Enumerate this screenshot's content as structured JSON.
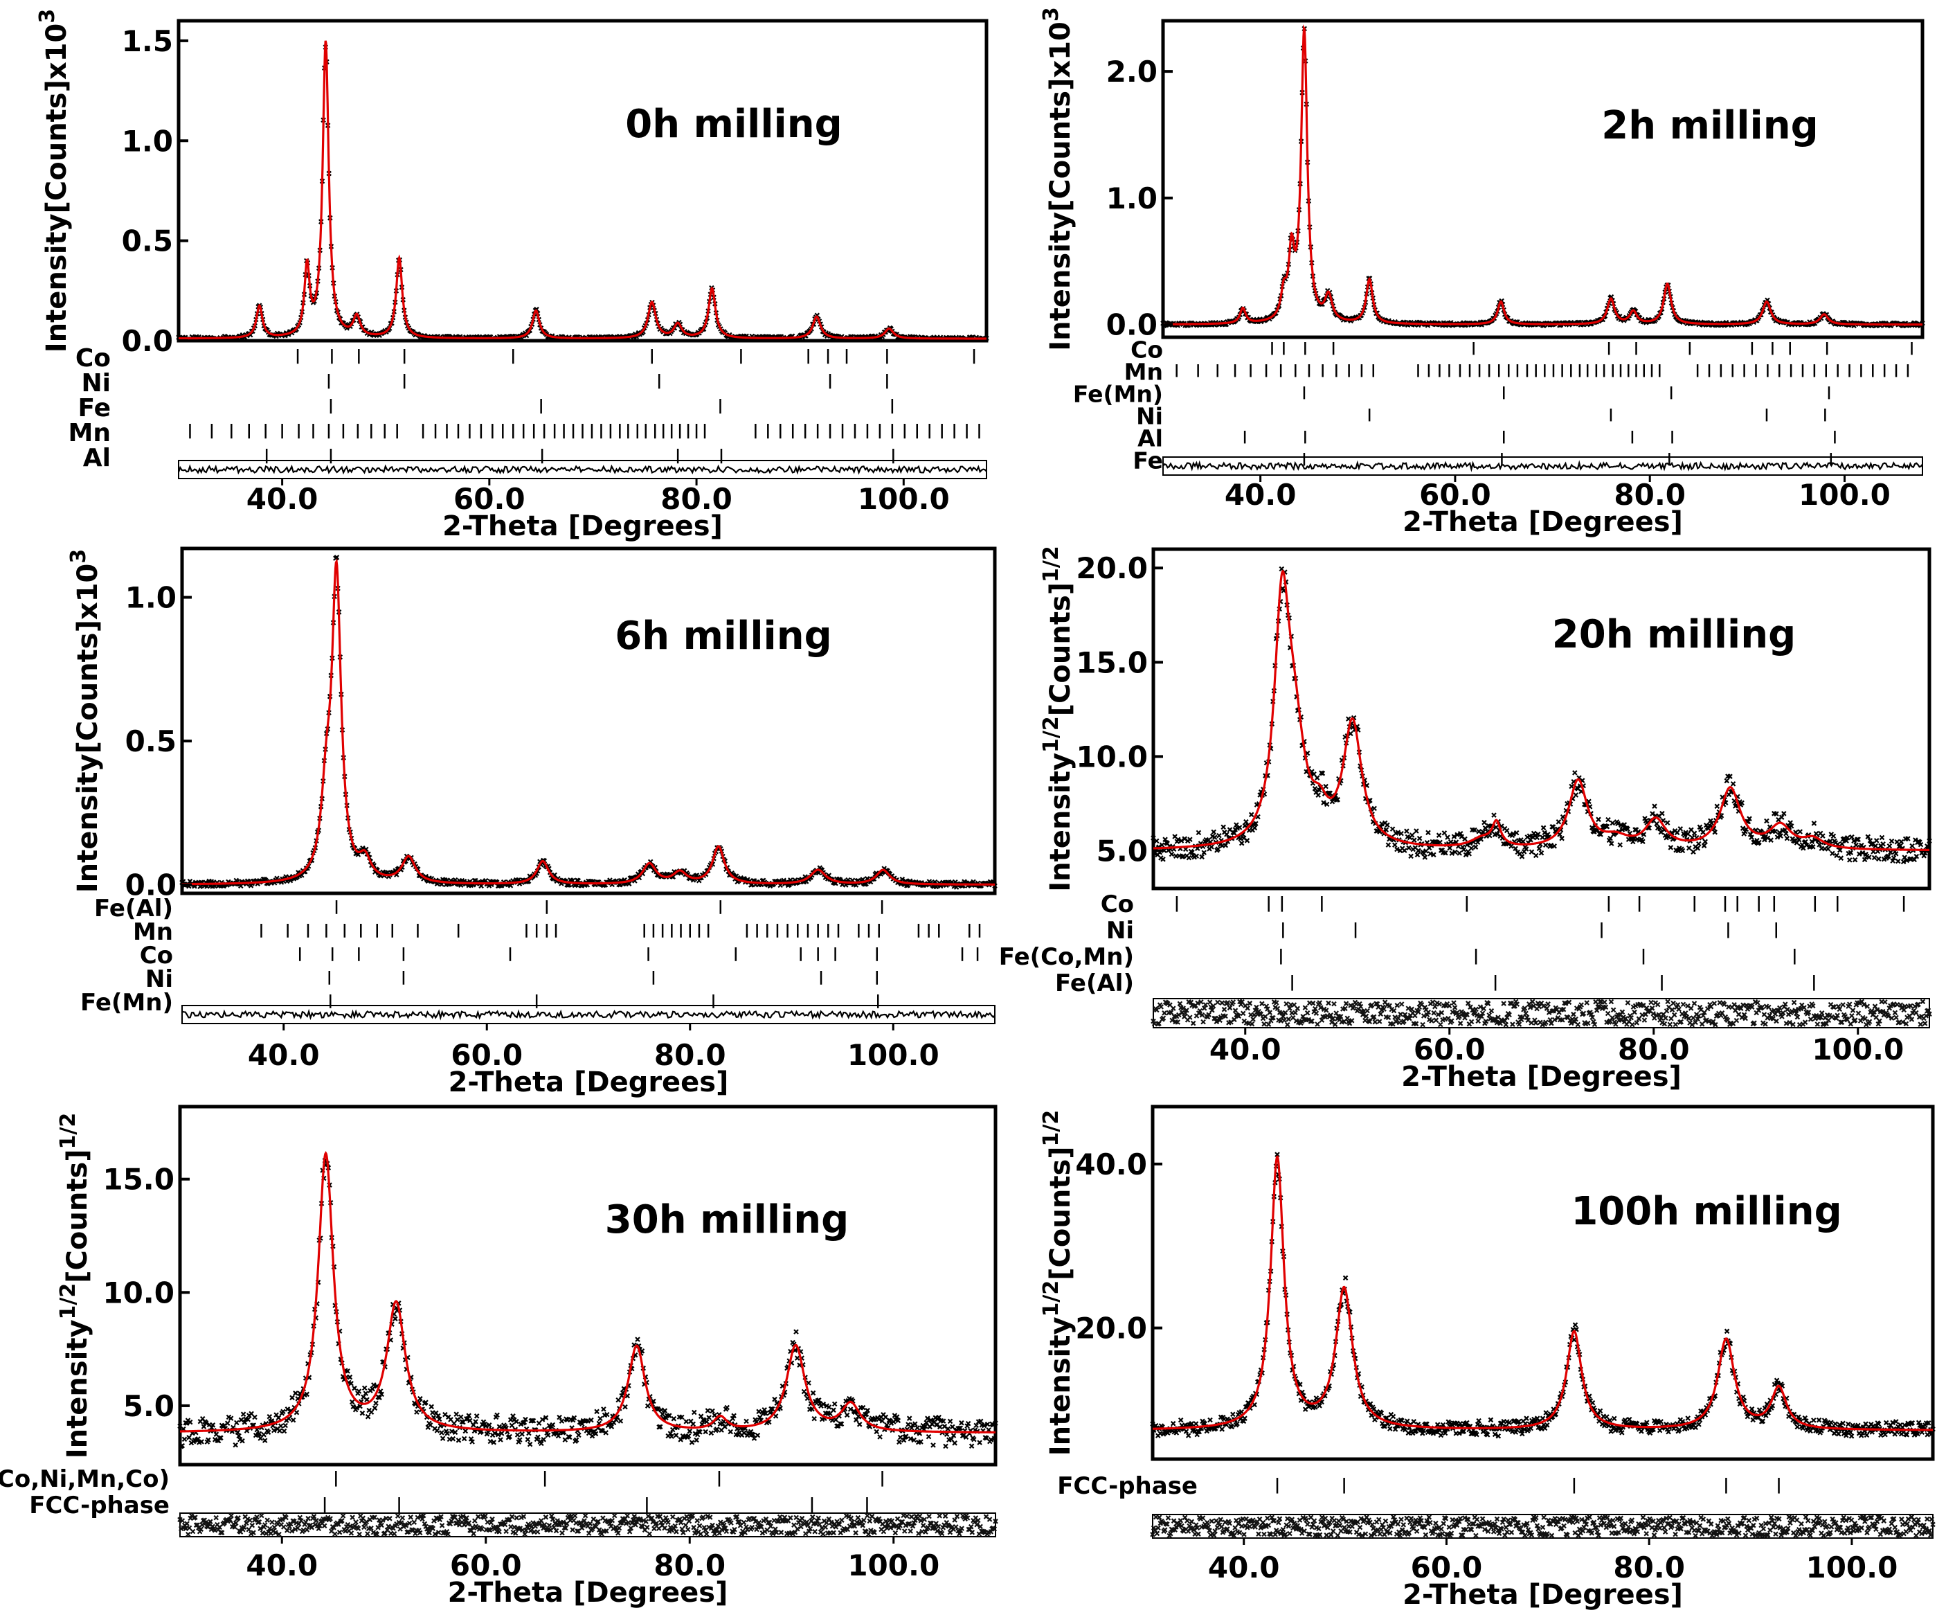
{
  "figure": {
    "x_axis_label": "2-Theta [Degrees]"
  },
  "colors": {
    "observed": "#000000",
    "calculated": "#e00000",
    "frame": "#000000"
  },
  "chart_data": [
    {
      "type": "line",
      "title": "0h milling",
      "ylabel": "Intensity[Counts]x10",
      "ylabel_super": "3",
      "xlabel": "2-Theta [Degrees]",
      "xlim": [
        30,
        108
      ],
      "ylim": [
        0,
        1.6
      ],
      "yticks": [
        0.0,
        0.5,
        1.0,
        1.5
      ],
      "ytick_labels": [
        "0.0",
        "0.5",
        "1.0",
        "1.5"
      ],
      "xticks": [
        40,
        60,
        80,
        100
      ],
      "xtick_labels": [
        "40.0",
        "60.0",
        "80.0",
        "100.0"
      ],
      "background": 0.01,
      "noise": 0.008,
      "peaks": [
        {
          "x": 37.8,
          "h": 0.16,
          "w": 0.35
        },
        {
          "x": 42.4,
          "h": 0.34,
          "w": 0.3
        },
        {
          "x": 44.2,
          "h": 1.48,
          "w": 0.35
        },
        {
          "x": 47.2,
          "h": 0.1,
          "w": 0.4
        },
        {
          "x": 51.3,
          "h": 0.4,
          "w": 0.35
        },
        {
          "x": 64.5,
          "h": 0.14,
          "w": 0.4
        },
        {
          "x": 75.7,
          "h": 0.18,
          "w": 0.45
        },
        {
          "x": 78.2,
          "h": 0.07,
          "w": 0.45
        },
        {
          "x": 81.5,
          "h": 0.25,
          "w": 0.4
        },
        {
          "x": 91.6,
          "h": 0.11,
          "w": 0.45
        },
        {
          "x": 98.6,
          "h": 0.05,
          "w": 0.5
        }
      ],
      "phases": [
        {
          "name": "Co",
          "positions": [
            41.5,
            44.8,
            47.4,
            51.8,
            62.3,
            75.7,
            84.3,
            90.8,
            92.7,
            94.5,
            98.4,
            106.8
          ]
        },
        {
          "name": "Ni",
          "positions": [
            44.5,
            51.8,
            76.4,
            92.9,
            98.4
          ]
        },
        {
          "name": "Fe",
          "positions": [
            44.7,
            65.0,
            82.3,
            98.9
          ]
        },
        {
          "name": "Mn",
          "positions": [
            31.1,
            33.2,
            35.1,
            36.8,
            38.4,
            40.0,
            41.6,
            43.0,
            44.5,
            45.9,
            47.3,
            48.6,
            49.9,
            51.1,
            53.6,
            54.8,
            55.9,
            57.0,
            58.1,
            59.2,
            60.3,
            61.3,
            62.3,
            63.3,
            64.3,
            65.3,
            66.3,
            67.2,
            68.1,
            69.0,
            69.9,
            70.8,
            71.7,
            72.6,
            73.4,
            74.3,
            75.1,
            76.0,
            76.8,
            77.6,
            78.4,
            79.2,
            80.0,
            80.8,
            85.7,
            86.9,
            88.1,
            89.3,
            90.5,
            91.7,
            92.9,
            94.1,
            95.3,
            96.5,
            97.7,
            98.9,
            100.1,
            101.3,
            102.5,
            103.7,
            104.9,
            106.1,
            107.3
          ]
        },
        {
          "name": "Al",
          "positions": [
            38.5,
            44.7,
            65.1,
            78.2,
            82.4,
            99.0
          ]
        }
      ]
    },
    {
      "type": "line",
      "title": "2h milling",
      "ylabel": "Intensity[Counts]x10",
      "ylabel_super": "3",
      "xlabel": "2-Theta [Degrees]",
      "xlim": [
        30,
        108
      ],
      "ylim": [
        -0.1,
        2.4
      ],
      "yticks": [
        0.0,
        1.0,
        2.0
      ],
      "ytick_labels": [
        "0.0",
        "1.0",
        "2.0"
      ],
      "xticks": [
        40,
        60,
        80,
        100
      ],
      "xtick_labels": [
        "40.0",
        "60.0",
        "80.0",
        "100.0"
      ],
      "background": 0.0,
      "noise": 0.012,
      "peaks": [
        {
          "x": 38.2,
          "h": 0.12,
          "w": 0.35
        },
        {
          "x": 42.4,
          "h": 0.2,
          "w": 0.35
        },
        {
          "x": 43.2,
          "h": 0.5,
          "w": 0.35
        },
        {
          "x": 44.5,
          "h": 2.3,
          "w": 0.38
        },
        {
          "x": 47.0,
          "h": 0.2,
          "w": 0.45
        },
        {
          "x": 51.2,
          "h": 0.35,
          "w": 0.4
        },
        {
          "x": 64.7,
          "h": 0.18,
          "w": 0.4
        },
        {
          "x": 76.0,
          "h": 0.2,
          "w": 0.45
        },
        {
          "x": 78.3,
          "h": 0.1,
          "w": 0.45
        },
        {
          "x": 81.8,
          "h": 0.32,
          "w": 0.45
        },
        {
          "x": 92.0,
          "h": 0.18,
          "w": 0.5
        },
        {
          "x": 97.9,
          "h": 0.08,
          "w": 0.5
        }
      ],
      "phases": [
        {
          "name": "Co",
          "positions": [
            41.2,
            42.4,
            44.6,
            47.5,
            61.9,
            75.8,
            78.6,
            84.1,
            90.5,
            92.6,
            94.4,
            98.2,
            106.9
          ]
        },
        {
          "name": "Mn",
          "positions": [
            31.4,
            33.6,
            35.6,
            37.4,
            39.0,
            40.6,
            42.1,
            43.6,
            45.0,
            46.4,
            47.8,
            49.1,
            50.4,
            51.6,
            56.2,
            57.3,
            58.4,
            59.4,
            60.5,
            61.5,
            62.5,
            63.5,
            64.5,
            65.5,
            66.4,
            67.4,
            68.3,
            69.2,
            70.1,
            71.0,
            71.9,
            72.8,
            73.6,
            74.5,
            75.3,
            76.2,
            77.0,
            77.8,
            78.6,
            79.4,
            80.2,
            81.0,
            84.9,
            86.1,
            87.3,
            88.5,
            89.7,
            90.9,
            92.1,
            93.3,
            94.5,
            95.7,
            96.9,
            98.1,
            99.3,
            100.5,
            101.7,
            102.9,
            104.1,
            105.3,
            106.5
          ]
        },
        {
          "name": "Fe(Mn)",
          "positions": [
            44.5,
            65.0,
            82.2,
            98.4
          ]
        },
        {
          "name": "Ni",
          "positions": [
            51.2,
            76.0,
            92.0,
            98.0
          ]
        },
        {
          "name": "Al",
          "positions": [
            38.4,
            44.6,
            65.0,
            78.2,
            82.3,
            99.0
          ]
        },
        {
          "name": "Fe",
          "positions": [
            44.5,
            64.8,
            82.0,
            98.6
          ]
        }
      ]
    },
    {
      "type": "line",
      "title": "6h milling",
      "ylabel": "Intensity[Counts]x10",
      "ylabel_super": "3",
      "xlabel": "2-Theta [Degrees]",
      "xlim": [
        30,
        110
      ],
      "ylim": [
        -0.03,
        1.17
      ],
      "yticks": [
        0.0,
        0.5,
        1.0
      ],
      "ytick_labels": [
        "0.0",
        "0.5",
        "1.0"
      ],
      "xticks": [
        40,
        60,
        80,
        100
      ],
      "xtick_labels": [
        "40.0",
        "60.0",
        "80.0",
        "100.0"
      ],
      "background": 0.0,
      "noise": 0.01,
      "peaks": [
        {
          "x": 44.2,
          "h": 0.26,
          "w": 0.6
        },
        {
          "x": 45.2,
          "h": 1.05,
          "w": 0.55
        },
        {
          "x": 48.0,
          "h": 0.07,
          "w": 0.7
        },
        {
          "x": 52.3,
          "h": 0.09,
          "w": 0.8
        },
        {
          "x": 65.5,
          "h": 0.08,
          "w": 0.7
        },
        {
          "x": 76.0,
          "h": 0.07,
          "w": 0.8
        },
        {
          "x": 79.0,
          "h": 0.04,
          "w": 0.8
        },
        {
          "x": 82.8,
          "h": 0.13,
          "w": 0.7
        },
        {
          "x": 92.6,
          "h": 0.05,
          "w": 0.9
        },
        {
          "x": 99.0,
          "h": 0.05,
          "w": 0.8
        }
      ],
      "phases": [
        {
          "name": "Fe(Al)",
          "positions": [
            45.2,
            65.9,
            83.0,
            98.9
          ]
        },
        {
          "name": "Mn",
          "positions": [
            37.8,
            40.4,
            42.4,
            44.2,
            46.0,
            47.6,
            49.2,
            50.7,
            53.2,
            57.2,
            63.9,
            64.9,
            65.9,
            66.8,
            75.5,
            76.4,
            77.3,
            78.2,
            79.1,
            80.0,
            80.9,
            81.8,
            85.6,
            86.6,
            87.6,
            88.6,
            89.6,
            90.6,
            91.6,
            92.6,
            93.6,
            94.6,
            96.6,
            97.6,
            98.6,
            102.5,
            103.5,
            104.5,
            107.5,
            108.5
          ]
        },
        {
          "name": "Co",
          "positions": [
            41.6,
            44.8,
            47.4,
            51.8,
            62.3,
            75.9,
            84.5,
            90.9,
            92.6,
            94.3,
            98.4,
            106.8,
            108.3
          ]
        },
        {
          "name": "Ni",
          "positions": [
            44.5,
            51.8,
            76.4,
            92.9,
            98.4
          ]
        },
        {
          "name": "Fe(Mn)",
          "positions": [
            44.6,
            64.9,
            82.3,
            98.5
          ]
        }
      ]
    },
    {
      "type": "line",
      "title": "20h milling",
      "ylabel": "Intensity",
      "ylabel_super": "1/2",
      "ylabel_suffix": "[Counts]",
      "ylabel_suffix_super": "1/2",
      "xlabel": "2-Theta [Degrees]",
      "xlim": [
        31,
        107
      ],
      "ylim": [
        3.0,
        21.0
      ],
      "yticks": [
        5.0,
        10.0,
        15.0,
        20.0
      ],
      "ytick_labels": [
        "5.0",
        "10.0",
        "15.0",
        "20.0"
      ],
      "xticks": [
        40,
        60,
        80,
        100
      ],
      "xtick_labels": [
        "40.0",
        "60.0",
        "80.0",
        "100.0"
      ],
      "background": 5.0,
      "noise": 0.6,
      "peaks": [
        {
          "x": 43.6,
          "h": 12.0,
          "w": 0.9
        },
        {
          "x": 44.8,
          "h": 5.0,
          "w": 1.2
        },
        {
          "x": 47.3,
          "h": 1.2,
          "w": 0.9
        },
        {
          "x": 50.5,
          "h": 6.5,
          "w": 1.1
        },
        {
          "x": 63.2,
          "h": 0.5,
          "w": 1.4
        },
        {
          "x": 64.6,
          "h": 1.2,
          "w": 0.5
        },
        {
          "x": 72.6,
          "h": 3.6,
          "w": 1.1
        },
        {
          "x": 76.3,
          "h": 0.5,
          "w": 1.5
        },
        {
          "x": 80.2,
          "h": 1.5,
          "w": 1.2
        },
        {
          "x": 87.5,
          "h": 3.2,
          "w": 1.2
        },
        {
          "x": 92.4,
          "h": 1.2,
          "w": 1.3
        },
        {
          "x": 95.6,
          "h": 0.5,
          "w": 1.2
        }
      ],
      "phases": [
        {
          "name": "Co",
          "positions": [
            33.3,
            42.3,
            43.6,
            47.5,
            61.7,
            75.6,
            78.6,
            84.0,
            87.0,
            88.2,
            90.3,
            91.8,
            95.8,
            98.0,
            104.5
          ]
        },
        {
          "name": "Ni",
          "positions": [
            43.7,
            50.8,
            74.9,
            87.3,
            92.0
          ]
        },
        {
          "name": "Fe(Co,Mn)",
          "positions": [
            43.5,
            62.6,
            79.0,
            93.8
          ]
        },
        {
          "name": "Fe(Al)",
          "positions": [
            44.6,
            64.5,
            80.8,
            95.7
          ]
        }
      ]
    },
    {
      "type": "line",
      "title": "30h milling",
      "ylabel": "Intensity",
      "ylabel_super": "1/2",
      "ylabel_suffix": "[Counts]",
      "ylabel_suffix_super": "1/2",
      "xlabel": "2-Theta [Degrees]",
      "xlim": [
        30,
        110
      ],
      "ylim": [
        2.4,
        18.2
      ],
      "yticks": [
        5.0,
        10.0,
        15.0
      ],
      "ytick_labels": [
        "5.0",
        "10.0",
        "15.0"
      ],
      "xticks": [
        40,
        60,
        80,
        100
      ],
      "xtick_labels": [
        "40.0",
        "60.0",
        "80.0",
        "100.0"
      ],
      "background": 3.8,
      "noise": 0.6,
      "peaks": [
        {
          "x": 44.3,
          "h": 12.2,
          "w": 0.9
        },
        {
          "x": 51.2,
          "h": 5.6,
          "w": 1.1
        },
        {
          "x": 74.8,
          "h": 3.8,
          "w": 1.0
        },
        {
          "x": 83.0,
          "h": 0.6,
          "w": 0.8
        },
        {
          "x": 90.4,
          "h": 3.8,
          "w": 1.1
        },
        {
          "x": 95.8,
          "h": 1.2,
          "w": 1.1
        }
      ],
      "phases": [
        {
          "name": "Fe(Co,Ni,Mn,Co)",
          "positions": [
            45.3,
            65.8,
            82.9,
            98.9
          ]
        },
        {
          "name": "FCC-phase",
          "positions": [
            44.2,
            51.5,
            75.8,
            92.0,
            97.4
          ]
        }
      ]
    },
    {
      "type": "line",
      "title": "100h milling",
      "ylabel": "Intensity",
      "ylabel_super": "1/2",
      "ylabel_suffix": "[Counts]",
      "ylabel_suffix_super": "1/2",
      "xlabel": "2-Theta [Degrees]",
      "xlim": [
        31,
        108
      ],
      "ylim": [
        4.0,
        47.0
      ],
      "yticks": [
        20.0,
        40.0
      ],
      "ytick_labels": [
        "20.0",
        "40.0"
      ],
      "xticks": [
        40,
        60,
        80,
        100
      ],
      "xtick_labels": [
        "40.0",
        "60.0",
        "80.0",
        "100.0"
      ],
      "background": 7.5,
      "noise": 0.8,
      "peaks": [
        {
          "x": 43.3,
          "h": 33.0,
          "w": 0.8
        },
        {
          "x": 49.9,
          "h": 17.0,
          "w": 1.0
        },
        {
          "x": 72.6,
          "h": 12.0,
          "w": 0.9
        },
        {
          "x": 87.6,
          "h": 11.0,
          "w": 1.0
        },
        {
          "x": 92.8,
          "h": 5.0,
          "w": 0.9
        }
      ],
      "phases": [
        {
          "name": "FCC-phase",
          "positions": [
            43.3,
            49.9,
            72.6,
            87.6,
            92.8
          ]
        }
      ]
    }
  ]
}
